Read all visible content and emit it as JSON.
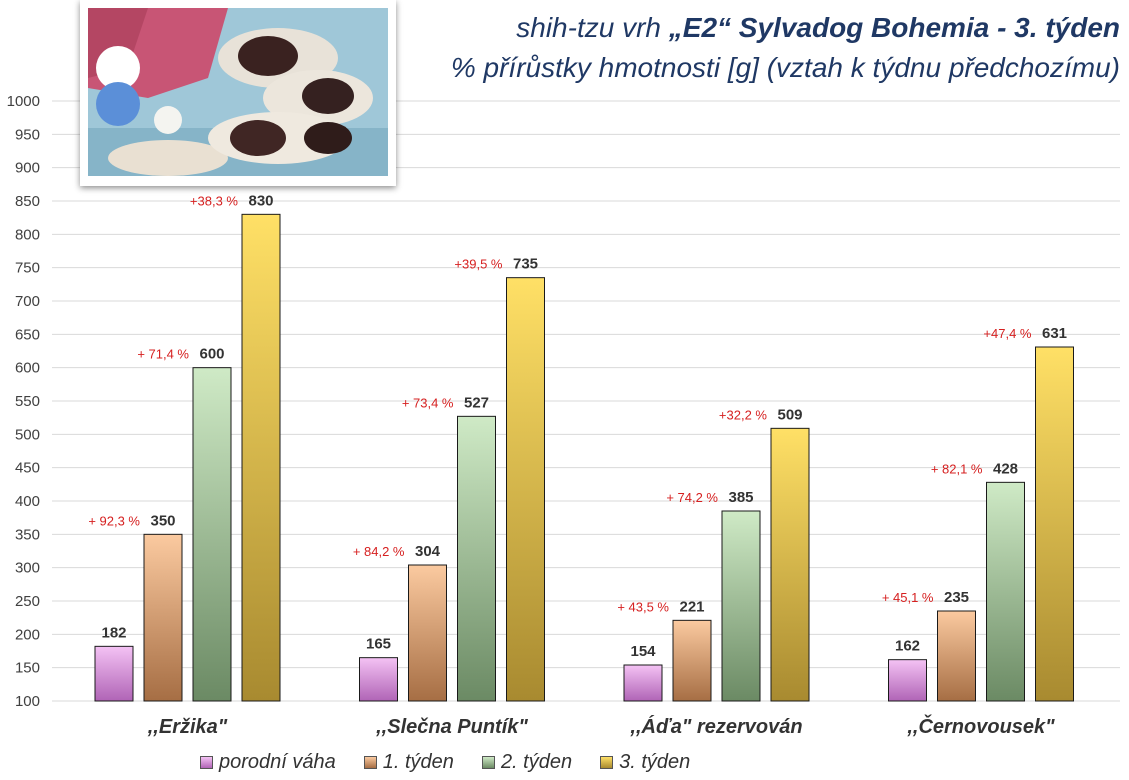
{
  "title": {
    "prefix": "shih-tzu vrh ",
    "bold": "„E2“ Sylvadog Bohemia - 3. týden",
    "subtitle": "% přírůstky hmotnosti [g] (vztah k týdnu předchozímu)"
  },
  "colors": {
    "porodni": [
      "#f4c2f4",
      "#b064b6"
    ],
    "tyden1": [
      "#fbcaa0",
      "#a66e44"
    ],
    "tyden2": [
      "#cfeac6",
      "#6b8a64"
    ],
    "tyden3": [
      "#ffe066",
      "#a88a30"
    ],
    "pct": "#d62020"
  },
  "chart_data": {
    "type": "bar",
    "categories": [
      ",,Eržika\"",
      ",,Slečna Puntík\"",
      ",,Áďa\" rezervován",
      ",,Černovousek\""
    ],
    "series": [
      {
        "name": "porodní váha",
        "values": [
          182,
          165,
          154,
          162
        ]
      },
      {
        "name": "1. týden",
        "values": [
          350,
          304,
          221,
          235
        ]
      },
      {
        "name": "2. týden",
        "values": [
          600,
          527,
          385,
          428
        ]
      },
      {
        "name": "3. týden",
        "values": [
          830,
          735,
          509,
          631
        ]
      }
    ],
    "annotations": [
      [
        null,
        "+ 92,3 %",
        "+ 71,4 %",
        "+38,3 %"
      ],
      [
        null,
        "+ 84,2 %",
        "+ 73,4 %",
        "+39,5 %"
      ],
      [
        null,
        "+ 43,5 %",
        "+ 74,2 %",
        "+32,2 %"
      ],
      [
        null,
        "+ 45,1 %",
        "+ 82,1 %",
        "+47,4 %"
      ]
    ],
    "ylim": [
      100,
      1000
    ],
    "yticks": [
      100,
      150,
      200,
      250,
      300,
      350,
      400,
      450,
      500,
      550,
      600,
      650,
      700,
      750,
      800,
      850,
      900,
      950,
      1000
    ],
    "grid": true,
    "legend": "bottom",
    "xlabel": "",
    "ylabel": ""
  }
}
